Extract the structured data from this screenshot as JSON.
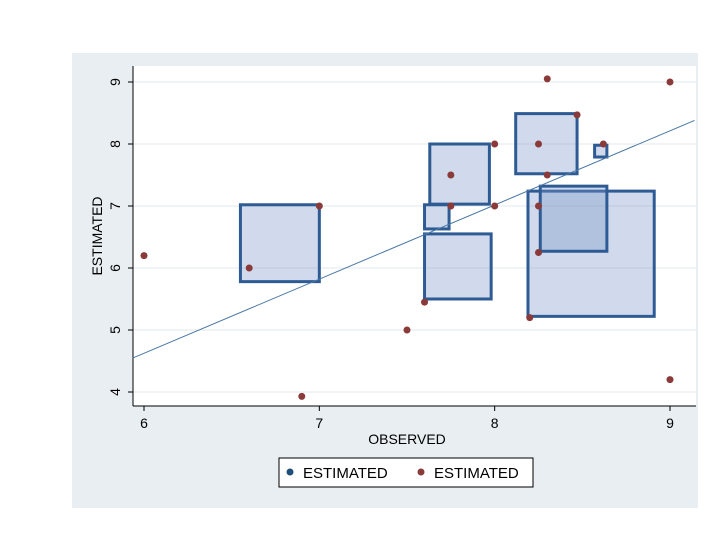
{
  "chart_data": {
    "type": "scatter",
    "title": "",
    "xlabel": "OBSERVED",
    "ylabel": "ESTIMATED",
    "xlim": [
      6,
      9
    ],
    "ylim": [
      4,
      9
    ],
    "x_ticks": [
      "6",
      "7",
      "8",
      "9"
    ],
    "y_ticks": [
      "4",
      "5",
      "6",
      "7",
      "8",
      "9"
    ],
    "grid": true,
    "legend_position": "bottom",
    "legend": [
      {
        "label": "ESTIMATED",
        "color": "#1f4e79"
      },
      {
        "label": "ESTIMATED",
        "color": "#8b3a3a"
      }
    ],
    "points": [
      {
        "x": 6.0,
        "y": 6.2
      },
      {
        "x": 6.6,
        "y": 6.0
      },
      {
        "x": 6.9,
        "y": 3.93
      },
      {
        "x": 7.0,
        "y": 7.0
      },
      {
        "x": 7.5,
        "y": 5.0
      },
      {
        "x": 7.6,
        "y": 5.45
      },
      {
        "x": 7.75,
        "y": 7.5
      },
      {
        "x": 7.75,
        "y": 7.0
      },
      {
        "x": 8.0,
        "y": 8.0
      },
      {
        "x": 8.0,
        "y": 7.0
      },
      {
        "x": 8.2,
        "y": 5.2
      },
      {
        "x": 8.25,
        "y": 8.0
      },
      {
        "x": 8.25,
        "y": 7.0
      },
      {
        "x": 8.25,
        "y": 6.25
      },
      {
        "x": 8.3,
        "y": 9.05
      },
      {
        "x": 8.3,
        "y": 7.5
      },
      {
        "x": 8.47,
        "y": 8.47
      },
      {
        "x": 8.62,
        "y": 8.0
      },
      {
        "x": 9.0,
        "y": 9.0
      },
      {
        "x": 9.0,
        "y": 4.2
      }
    ],
    "boxes": [
      {
        "x0": 6.55,
        "x1": 7.0,
        "y0": 5.78,
        "y1": 7.02
      },
      {
        "x0": 7.6,
        "x1": 7.74,
        "y0": 6.63,
        "y1": 7.02
      },
      {
        "x0": 7.6,
        "x1": 7.98,
        "y0": 5.5,
        "y1": 6.55
      },
      {
        "x0": 7.63,
        "x1": 7.97,
        "y0": 7.03,
        "y1": 8.0
      },
      {
        "x0": 8.12,
        "x1": 8.47,
        "y0": 7.52,
        "y1": 8.49
      },
      {
        "x0": 8.57,
        "x1": 8.64,
        "y0": 7.79,
        "y1": 7.98
      },
      {
        "x0": 8.19,
        "x1": 8.91,
        "y0": 5.22,
        "y1": 7.24
      },
      {
        "x0": 8.26,
        "x1": 8.64,
        "y0": 6.27,
        "y1": 7.32
      }
    ],
    "fit_line": {
      "x0": 6.0,
      "y0": 4.55,
      "x1": 9.14,
      "y1": 8.38
    }
  }
}
